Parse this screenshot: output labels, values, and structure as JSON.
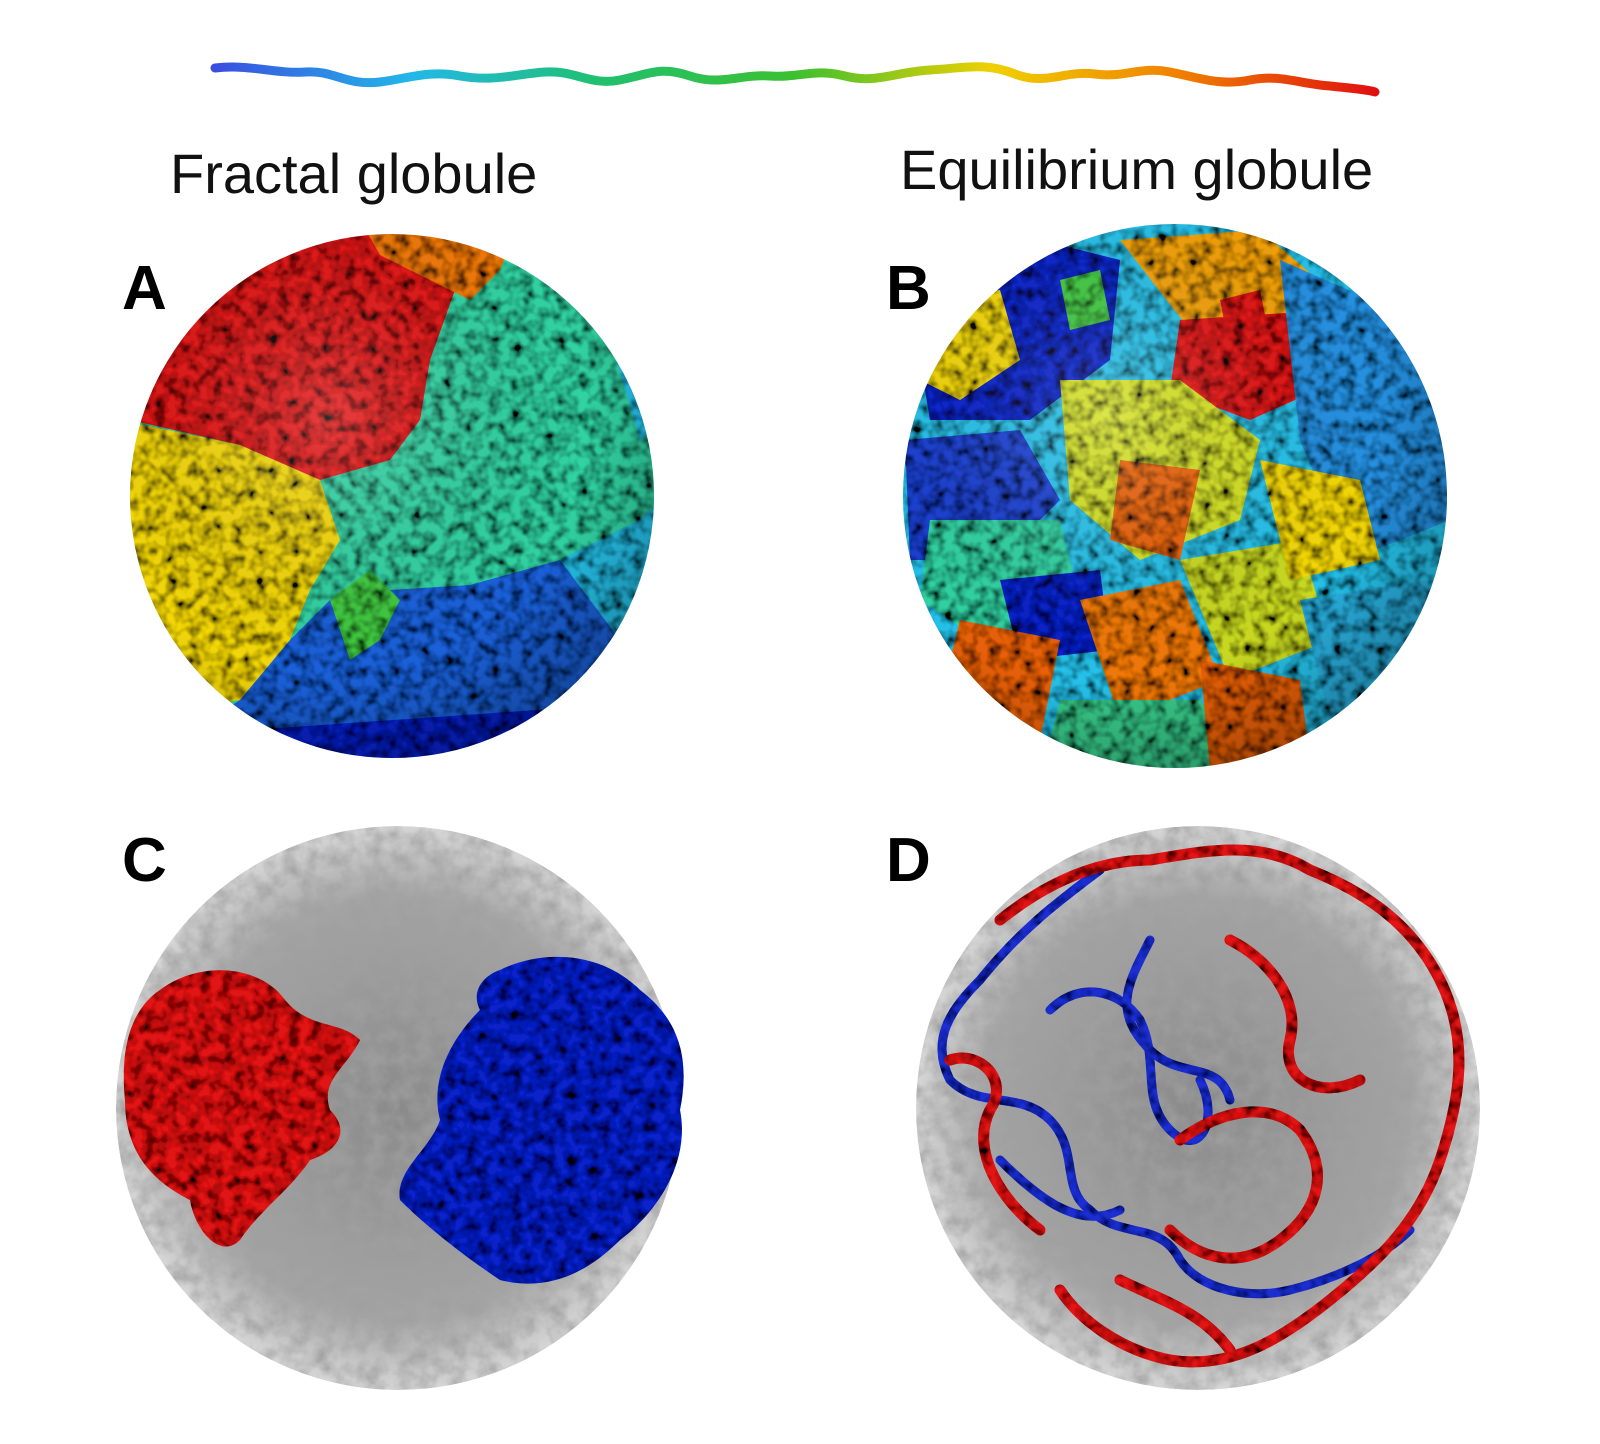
{
  "titles": {
    "left": "Fractal globule",
    "right": "Equilibrium globule"
  },
  "panels": {
    "a": "A",
    "b": "B",
    "c": "C",
    "d": "D"
  },
  "colors": {
    "chain_gradient": [
      "#3a4fe0",
      "#22b8e8",
      "#20c070",
      "#3cc030",
      "#f0d000",
      "#f08000",
      "#e01010"
    ],
    "red": "#e01414",
    "orange": "#f07810",
    "yellow": "#f2d60a",
    "teal": "#30d2a2",
    "cyan": "#28c0e8",
    "blue": "#1b60d8",
    "dark_blue": "#1020c8",
    "green": "#40c840",
    "gray": "#9a9a9a"
  }
}
